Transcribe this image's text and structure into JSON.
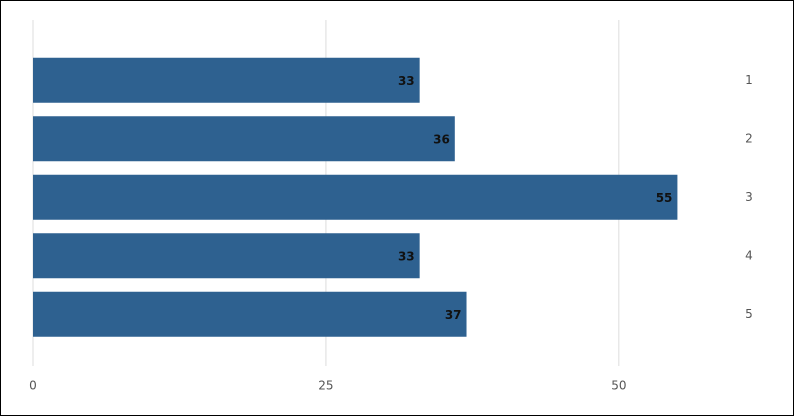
{
  "chart_data": {
    "type": "bar",
    "orientation": "horizontal",
    "categories": [
      "1",
      "2",
      "3",
      "4",
      "5"
    ],
    "values": [
      33,
      36,
      55,
      33,
      37
    ],
    "color": "#2e6190",
    "xlim": [
      0,
      60
    ],
    "xticks": [
      0,
      25,
      50
    ],
    "grid": true
  }
}
